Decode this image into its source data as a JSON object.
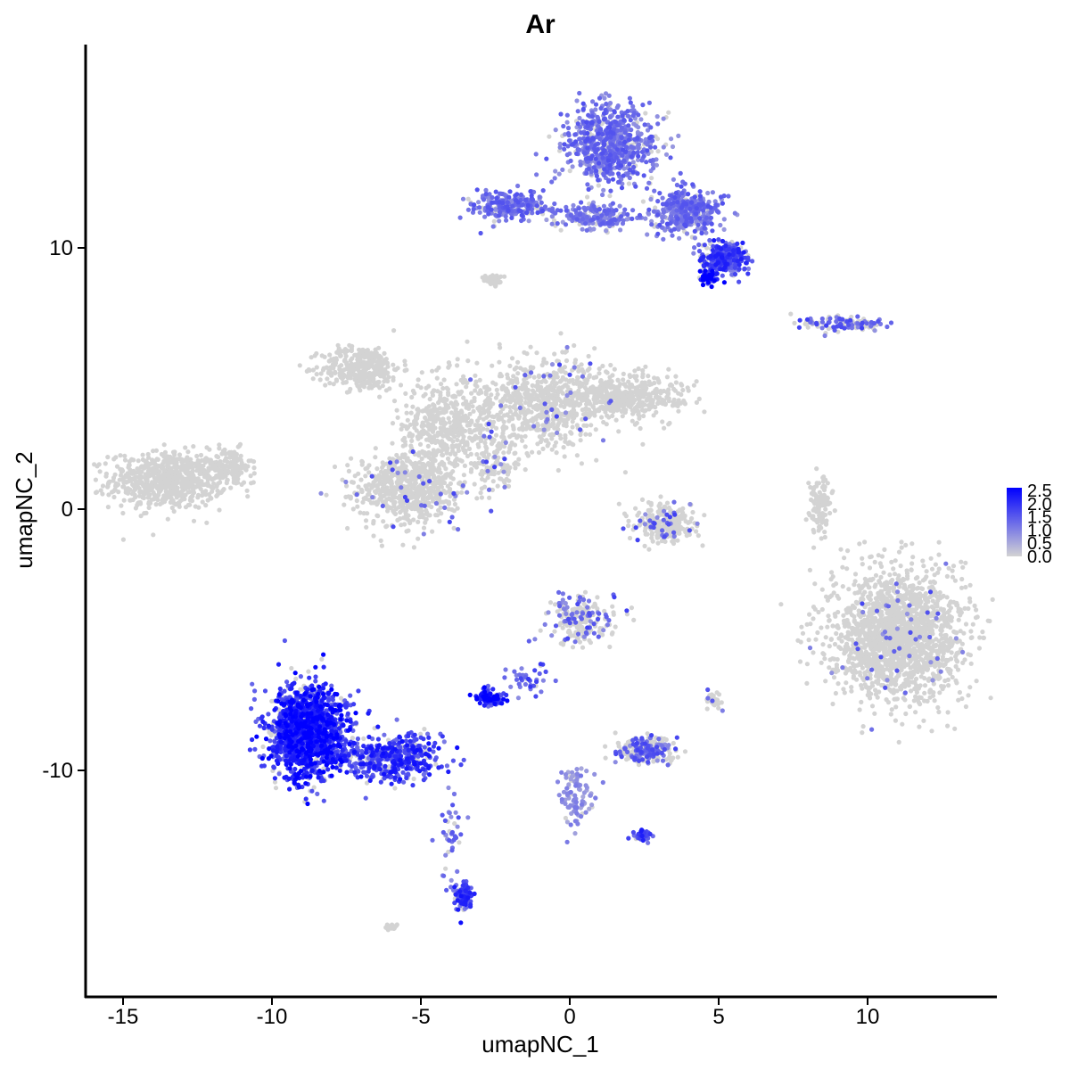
{
  "chart_data": {
    "type": "scatter",
    "title": "Ar",
    "xlabel": "umapNC_1",
    "ylabel": "umapNC_2",
    "xlim": [
      -16.5,
      14.5
    ],
    "ylim": [
      -18.5,
      17.5
    ],
    "xticks": [
      -15,
      -10,
      -5,
      0,
      5,
      10
    ],
    "xtick_labels": [
      "-15",
      "-10",
      "-5",
      "0",
      "5",
      "10"
    ],
    "yticks": [
      -10,
      0,
      10
    ],
    "ytick_labels": [
      "-10",
      "0",
      "10"
    ],
    "grid": false,
    "legend": {
      "placement": "right",
      "type": "colorbar",
      "labels": [
        "2.5",
        "2.0",
        "1.5",
        "1.0",
        "0.5",
        "0.0"
      ],
      "values": [
        2.5,
        2.0,
        1.5,
        1.0,
        0.5,
        0.0
      ],
      "range": [
        0,
        2.6
      ]
    },
    "colors": {
      "low": "#d3d3d3",
      "high": "#0000ff"
    },
    "clusters": [
      {
        "x": -13.5,
        "y": 1.1,
        "sx": 1.6,
        "sy": 0.9,
        "expr": 0.0,
        "n": 700
      },
      {
        "x": -11.4,
        "y": 1.6,
        "sx": 0.6,
        "sy": 0.6,
        "expr": 0.0,
        "n": 120
      },
      {
        "x": -7.0,
        "y": 5.4,
        "sx": 1.1,
        "sy": 0.7,
        "expr": 0.0,
        "n": 350
      },
      {
        "x": -4.2,
        "y": 3.2,
        "sx": 1.2,
        "sy": 1.6,
        "expr": 0.0,
        "n": 450
      },
      {
        "x": -1.0,
        "y": 4.0,
        "sx": 2.0,
        "sy": 1.4,
        "expr": 0.02,
        "n": 700
      },
      {
        "x": 1.8,
        "y": 4.3,
        "sx": 1.6,
        "sy": 0.8,
        "expr": 0.0,
        "n": 450
      },
      {
        "x": -5.4,
        "y": 0.8,
        "sx": 1.4,
        "sy": 1.1,
        "expr": 0.02,
        "n": 650
      },
      {
        "x": -2.5,
        "y": 1.8,
        "sx": 0.6,
        "sy": 1.0,
        "expr": 0.05,
        "n": 120
      },
      {
        "x": 3.2,
        "y": -0.5,
        "sx": 0.9,
        "sy": 0.6,
        "expr": 0.05,
        "n": 250
      },
      {
        "x": 8.4,
        "y": 0.2,
        "sx": 0.3,
        "sy": 0.9,
        "expr": 0.0,
        "n": 120
      },
      {
        "x": 11.0,
        "y": -4.8,
        "sx": 1.9,
        "sy": 2.1,
        "expr": 0.01,
        "n": 1800
      },
      {
        "x": 9.2,
        "y": 7.1,
        "sx": 1.2,
        "sy": 0.25,
        "expr": 0.15,
        "n": 120
      },
      {
        "x": 0.4,
        "y": -4.3,
        "sx": 0.9,
        "sy": 0.8,
        "expr": 0.15,
        "n": 200
      },
      {
        "x": -2.6,
        "y": -7.2,
        "sx": 0.4,
        "sy": 0.25,
        "expr": 0.85,
        "n": 100
      },
      {
        "x": -1.5,
        "y": -6.5,
        "sx": 0.5,
        "sy": 0.5,
        "expr": 0.6,
        "n": 40
      },
      {
        "x": -8.8,
        "y": -8.5,
        "sx": 1.1,
        "sy": 1.5,
        "expr": 0.85,
        "n": 1500
      },
      {
        "x": -6.0,
        "y": -9.5,
        "sx": 1.3,
        "sy": 0.7,
        "expr": 0.75,
        "n": 450
      },
      {
        "x": -3.6,
        "y": -14.8,
        "sx": 0.3,
        "sy": 0.5,
        "expr": 0.75,
        "n": 90
      },
      {
        "x": -4.0,
        "y": -12.5,
        "sx": 0.3,
        "sy": 1.5,
        "expr": 0.3,
        "n": 40
      },
      {
        "x": 2.5,
        "y": -9.2,
        "sx": 0.8,
        "sy": 0.4,
        "expr": 0.15,
        "n": 250
      },
      {
        "x": 0.2,
        "y": -11.0,
        "sx": 0.5,
        "sy": 1.0,
        "expr": 0.35,
        "n": 100
      },
      {
        "x": 2.4,
        "y": -12.5,
        "sx": 0.3,
        "sy": 0.2,
        "expr": 0.7,
        "n": 40
      },
      {
        "x": 1.3,
        "y": 14.0,
        "sx": 1.3,
        "sy": 1.2,
        "expr": 0.5,
        "n": 700
      },
      {
        "x": -2.0,
        "y": 11.6,
        "sx": 1.1,
        "sy": 0.5,
        "expr": 0.5,
        "n": 250
      },
      {
        "x": 0.8,
        "y": 11.2,
        "sx": 1.3,
        "sy": 0.4,
        "expr": 0.45,
        "n": 200
      },
      {
        "x": 3.9,
        "y": 11.4,
        "sx": 0.9,
        "sy": 0.7,
        "expr": 0.5,
        "n": 400
      },
      {
        "x": 5.2,
        "y": 9.6,
        "sx": 0.6,
        "sy": 0.5,
        "expr": 0.7,
        "n": 300
      },
      {
        "x": 4.7,
        "y": 8.9,
        "sx": 0.3,
        "sy": 0.25,
        "expr": 0.95,
        "n": 60
      },
      {
        "x": -2.6,
        "y": 8.8,
        "sx": 0.3,
        "sy": 0.2,
        "expr": 0.0,
        "n": 40
      },
      {
        "x": -6.0,
        "y": -16.0,
        "sx": 0.2,
        "sy": 0.1,
        "expr": 0.0,
        "n": 20
      },
      {
        "x": 4.9,
        "y": -7.3,
        "sx": 0.3,
        "sy": 0.3,
        "expr": 0.05,
        "n": 30
      }
    ]
  }
}
